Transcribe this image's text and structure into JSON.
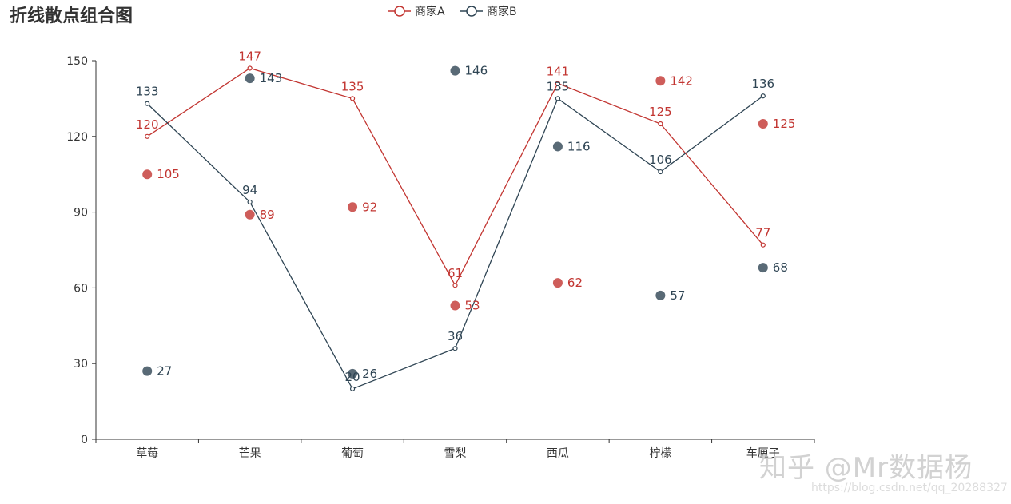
{
  "title": "折线散点组合图",
  "watermark": {
    "text": "知乎 @Mr数据杨",
    "url": "https://blog.csdn.net/qq_20288327"
  },
  "chart_data": {
    "type": "line",
    "title": "折线散点组合图",
    "categories": [
      "草莓",
      "芒果",
      "葡萄",
      "雪梨",
      "西瓜",
      "柠檬",
      "车厘子"
    ],
    "ylim": [
      0,
      150
    ],
    "yticks": [
      0,
      30,
      60,
      90,
      120,
      150
    ],
    "legend_position": "top-center",
    "grid": false,
    "series": [
      {
        "name": "商家A",
        "kind": "line",
        "color": "#c23531",
        "values": [
          120,
          147,
          135,
          61,
          141,
          125,
          77
        ]
      },
      {
        "name": "商家B",
        "kind": "line",
        "color": "#2f4554",
        "values": [
          133,
          94,
          20,
          36,
          135,
          106,
          136
        ]
      },
      {
        "kind": "scatter",
        "color": "#c23531",
        "values": [
          105,
          89,
          92,
          53,
          62,
          142,
          125
        ]
      },
      {
        "kind": "scatter",
        "color": "#2f4554",
        "values": [
          27,
          143,
          26,
          146,
          116,
          57,
          68
        ]
      }
    ]
  }
}
